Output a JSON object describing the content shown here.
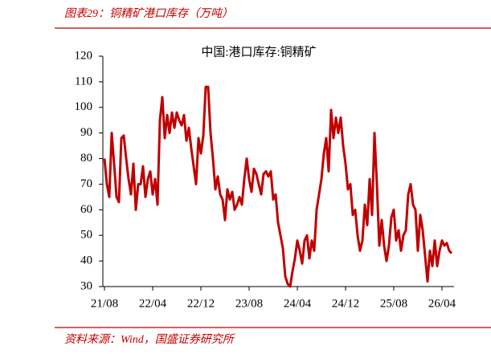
{
  "header": {
    "title": "图表29：铜精矿港口库存（万吨）"
  },
  "source": "资料来源：Wind，国盛证券研究所",
  "chart_data": {
    "type": "line",
    "title": "中国:港口库存:铜精矿",
    "categories": [
      "21/08",
      null,
      null,
      null,
      null,
      null,
      null,
      null,
      null,
      null,
      null,
      null,
      null,
      null,
      null,
      null,
      null,
      null,
      null,
      null,
      "22/04",
      null,
      null,
      null,
      null,
      null,
      null,
      null,
      null,
      null,
      null,
      null,
      null,
      null,
      null,
      null,
      null,
      null,
      null,
      null,
      "22/12",
      null,
      null,
      null,
      null,
      null,
      null,
      null,
      null,
      null,
      null,
      null,
      null,
      null,
      null,
      null,
      null,
      null,
      null,
      null,
      "23/08",
      null,
      null,
      null,
      null,
      null,
      null,
      null,
      null,
      null,
      null,
      null,
      null,
      null,
      null,
      null,
      null,
      null,
      null,
      null,
      "24/04",
      null,
      null,
      null,
      null,
      null,
      null,
      null,
      null,
      null,
      null,
      null,
      null,
      null,
      null,
      null,
      null,
      null,
      null,
      null,
      "24/12",
      null,
      null,
      null,
      null,
      null,
      null,
      null,
      null,
      null,
      null,
      null,
      null,
      null,
      null,
      null,
      null,
      null,
      null,
      null,
      "25/08",
      null,
      null,
      null,
      null,
      null,
      null,
      null,
      null,
      null,
      null,
      null,
      null,
      null,
      null,
      null,
      null,
      null,
      null,
      null,
      "26/04",
      null,
      null,
      null,
      null
    ],
    "values": [
      80,
      70,
      65,
      90,
      78,
      65,
      63,
      88,
      89,
      80,
      72,
      66,
      78,
      60,
      70,
      70,
      77,
      65,
      72,
      75,
      66,
      72,
      62,
      95,
      104,
      88,
      97,
      90,
      98,
      92,
      98,
      95,
      93,
      97,
      87,
      92,
      84,
      77,
      70,
      88,
      82,
      89,
      108,
      108,
      90,
      80,
      68,
      73,
      66,
      64,
      56,
      68,
      64,
      67,
      60,
      62,
      65,
      62,
      72,
      80,
      72,
      67,
      76,
      74,
      70,
      66,
      74,
      75,
      73,
      75,
      64,
      66,
      55,
      50,
      45,
      34,
      31,
      30,
      36,
      41,
      48,
      44,
      39,
      48,
      50,
      41,
      48,
      44,
      60,
      66,
      72,
      82,
      88,
      75,
      99,
      88,
      96,
      90,
      96,
      85,
      78,
      68,
      70,
      58,
      60,
      50,
      44,
      48,
      62,
      54,
      72,
      58,
      90,
      70,
      46,
      56,
      46,
      40,
      46,
      57,
      60,
      48,
      52,
      44,
      50,
      52,
      66,
      70,
      62,
      60,
      44,
      58,
      52,
      42,
      32,
      44,
      38,
      48,
      38,
      44,
      48,
      46,
      47,
      44,
      43
    ],
    "color": "#c00000",
    "ylim": [
      30,
      120
    ],
    "yticks": [
      30,
      40,
      50,
      60,
      70,
      80,
      90,
      100,
      110,
      120
    ]
  }
}
